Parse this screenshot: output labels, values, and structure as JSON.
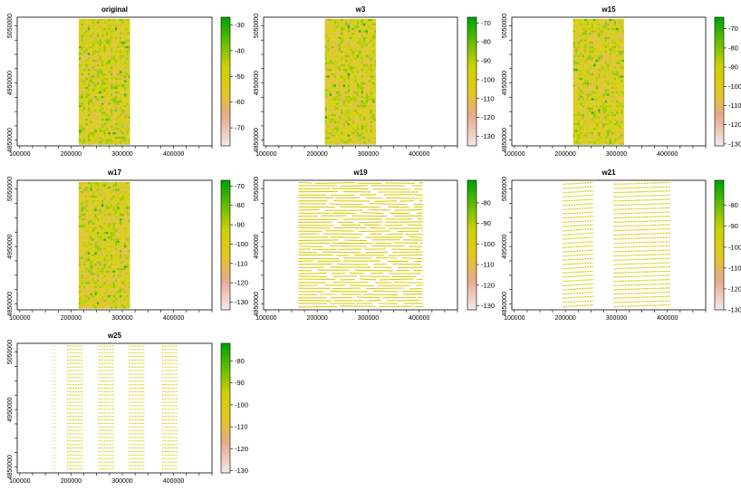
{
  "chart_data": [
    {
      "type": "heatmap",
      "title": "original",
      "pattern": "strip",
      "xlim": [
        95000,
        475000
      ],
      "ylim": [
        4840000,
        5065000
      ],
      "extent": [
        215000,
        315000,
        4842000,
        5062000
      ],
      "x_ticks": [
        {
          "value": 100000,
          "label": "100000"
        },
        {
          "value": 200000,
          "label": "200000"
        },
        {
          "value": 300000,
          "label": "300000"
        },
        {
          "value": 400000,
          "label": "400000"
        }
      ],
      "y_ticks": [
        {
          "value": 4850000,
          "label": "4850000"
        },
        {
          "value": 4950000,
          "label": "4950000"
        },
        {
          "value": 5050000,
          "label": "5050000"
        }
      ],
      "legend": {
        "min": -77,
        "max": -27,
        "ticks": [
          {
            "value": -30,
            "label": "-30"
          },
          {
            "value": -40,
            "label": "-40"
          },
          {
            "value": -50,
            "label": "-50"
          },
          {
            "value": -60,
            "label": "-60"
          },
          {
            "value": -70,
            "label": "-70"
          }
        ]
      }
    },
    {
      "type": "heatmap",
      "title": "w3",
      "pattern": "strip",
      "xlim": [
        95000,
        475000
      ],
      "ylim": [
        4840000,
        5065000
      ],
      "extent": [
        215000,
        315000,
        4842000,
        5062000
      ],
      "x_ticks": [
        {
          "value": 100000,
          "label": "100000"
        },
        {
          "value": 200000,
          "label": "200000"
        },
        {
          "value": 300000,
          "label": "300000"
        },
        {
          "value": 400000,
          "label": "400000"
        }
      ],
      "y_ticks": [
        {
          "value": 4850000,
          "label": "4850000"
        },
        {
          "value": 4950000,
          "label": "4950000"
        },
        {
          "value": 5050000,
          "label": "5050000"
        }
      ],
      "legend": {
        "min": -135,
        "max": -67,
        "ticks": [
          {
            "value": -70,
            "label": "-70"
          },
          {
            "value": -80,
            "label": "-80"
          },
          {
            "value": -90,
            "label": "-90"
          },
          {
            "value": -100,
            "label": "-100"
          },
          {
            "value": -110,
            "label": "-110"
          },
          {
            "value": -120,
            "label": "-120"
          },
          {
            "value": -130,
            "label": "-130"
          }
        ]
      }
    },
    {
      "type": "heatmap",
      "title": "w15",
      "pattern": "strip",
      "xlim": [
        95000,
        475000
      ],
      "ylim": [
        4840000,
        5065000
      ],
      "extent": [
        215000,
        315000,
        4842000,
        5062000
      ],
      "x_ticks": [
        {
          "value": 100000,
          "label": "100000"
        },
        {
          "value": 200000,
          "label": "200000"
        },
        {
          "value": 300000,
          "label": "300000"
        },
        {
          "value": 400000,
          "label": "400000"
        }
      ],
      "y_ticks": [
        {
          "value": 4850000,
          "label": "4850000"
        },
        {
          "value": 4950000,
          "label": "4950000"
        },
        {
          "value": 5050000,
          "label": "5050000"
        }
      ],
      "legend": {
        "min": -131,
        "max": -64,
        "ticks": [
          {
            "value": -70,
            "label": "-70"
          },
          {
            "value": -80,
            "label": "-80"
          },
          {
            "value": -90,
            "label": "-90"
          },
          {
            "value": -100,
            "label": "-100"
          },
          {
            "value": -110,
            "label": "-110"
          },
          {
            "value": -120,
            "label": "-120"
          },
          {
            "value": -130,
            "label": "-130"
          }
        ]
      }
    },
    {
      "type": "heatmap",
      "title": "w17",
      "pattern": "strip",
      "xlim": [
        95000,
        475000
      ],
      "ylim": [
        4840000,
        5065000
      ],
      "extent": [
        215000,
        315000,
        4842000,
        5062000
      ],
      "x_ticks": [
        {
          "value": 100000,
          "label": "100000"
        },
        {
          "value": 200000,
          "label": "200000"
        },
        {
          "value": 300000,
          "label": "300000"
        },
        {
          "value": 400000,
          "label": "400000"
        }
      ],
      "y_ticks": [
        {
          "value": 4850000,
          "label": "4850000"
        },
        {
          "value": 4950000,
          "label": "4950000"
        },
        {
          "value": 5050000,
          "label": "5050000"
        }
      ],
      "legend": {
        "min": -134,
        "max": -67,
        "ticks": [
          {
            "value": -70,
            "label": "-70"
          },
          {
            "value": -80,
            "label": "-80"
          },
          {
            "value": -90,
            "label": "-90"
          },
          {
            "value": -100,
            "label": "-100"
          },
          {
            "value": -110,
            "label": "-110"
          },
          {
            "value": -120,
            "label": "-120"
          },
          {
            "value": -130,
            "label": "-130"
          }
        ]
      }
    },
    {
      "type": "heatmap",
      "title": "w19",
      "pattern": "dashes",
      "xlim": [
        95000,
        475000
      ],
      "ylim": [
        4840000,
        5065000
      ],
      "extent": [
        163000,
        407000,
        4842000,
        5062000
      ],
      "x_ticks": [
        {
          "value": 100000,
          "label": "100000"
        },
        {
          "value": 200000,
          "label": "200000"
        },
        {
          "value": 300000,
          "label": "300000"
        },
        {
          "value": 400000,
          "label": "400000"
        }
      ],
      "y_ticks": [
        {
          "value": 4850000,
          "label": "4850000"
        },
        {
          "value": 4950000,
          "label": "4950000"
        },
        {
          "value": 5050000,
          "label": "5050000"
        }
      ],
      "legend": {
        "min": -132,
        "max": -69,
        "ticks": [
          {
            "value": -80,
            "label": "-80"
          },
          {
            "value": -90,
            "label": "-90"
          },
          {
            "value": -100,
            "label": "-100"
          },
          {
            "value": -110,
            "label": "-110"
          },
          {
            "value": -120,
            "label": "-120"
          },
          {
            "value": -130,
            "label": "-130"
          }
        ]
      }
    },
    {
      "type": "heatmap",
      "title": "w21",
      "pattern": "columns",
      "xlim": [
        95000,
        475000
      ],
      "ylim": [
        4840000,
        5065000
      ],
      "extent": [
        195000,
        405000,
        4842000,
        5062000
      ],
      "columns": [
        [
          195000,
          255000
        ],
        [
          295000,
          405000
        ]
      ],
      "x_ticks": [
        {
          "value": 100000,
          "label": "100000"
        },
        {
          "value": 200000,
          "label": "200000"
        },
        {
          "value": 300000,
          "label": "300000"
        },
        {
          "value": 400000,
          "label": "400000"
        }
      ],
      "y_ticks": [
        {
          "value": 4850000,
          "label": "4850000"
        },
        {
          "value": 4950000,
          "label": "4950000"
        },
        {
          "value": 5050000,
          "label": "5050000"
        }
      ],
      "legend": {
        "min": -130,
        "max": -68,
        "ticks": [
          {
            "value": -80,
            "label": "-80"
          },
          {
            "value": -90,
            "label": "-90"
          },
          {
            "value": -100,
            "label": "-100"
          },
          {
            "value": -110,
            "label": "-110"
          },
          {
            "value": -120,
            "label": "-120"
          },
          {
            "value": -130,
            "label": "-130"
          }
        ]
      }
    },
    {
      "type": "heatmap",
      "title": "w25",
      "pattern": "columns",
      "xlim": [
        95000,
        475000
      ],
      "ylim": [
        4840000,
        5065000
      ],
      "extent": [
        163000,
        407000,
        4842000,
        5062000
      ],
      "columns": [
        [
          163000,
          170000
        ],
        [
          192000,
          222000
        ],
        [
          253000,
          283000
        ],
        [
          313000,
          343000
        ],
        [
          377000,
          407000
        ]
      ],
      "x_ticks": [
        {
          "value": 100000,
          "label": "100000"
        },
        {
          "value": 200000,
          "label": "200000"
        },
        {
          "value": 300000,
          "label": "300000"
        },
        {
          "value": 400000,
          "label": "400000"
        }
      ],
      "y_ticks": [
        {
          "value": 4850000,
          "label": "4850000"
        },
        {
          "value": 4950000,
          "label": "4950000"
        },
        {
          "value": 5050000,
          "label": "5050000"
        }
      ],
      "legend": {
        "min": -131,
        "max": -72,
        "ticks": [
          {
            "value": -80,
            "label": "-80"
          },
          {
            "value": -90,
            "label": "-90"
          },
          {
            "value": -100,
            "label": "-100"
          },
          {
            "value": -110,
            "label": "-110"
          },
          {
            "value": -120,
            "label": "-120"
          },
          {
            "value": -130,
            "label": "-130"
          }
        ]
      }
    }
  ]
}
